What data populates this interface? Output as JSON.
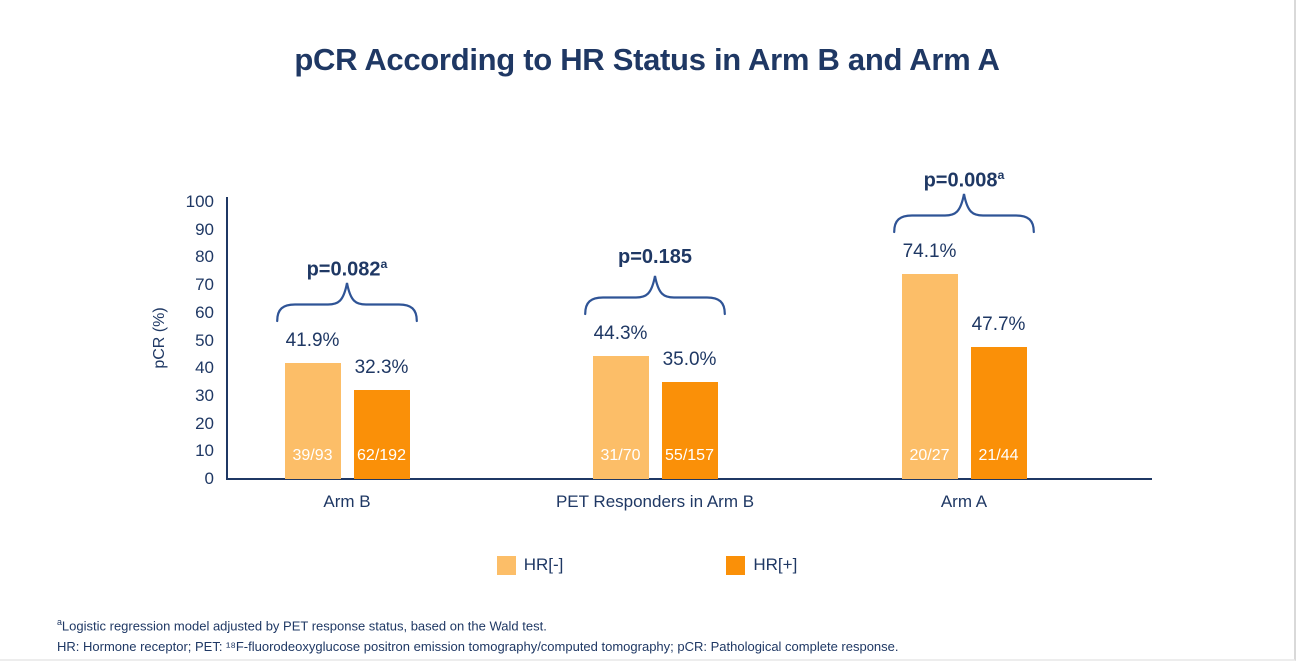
{
  "chart_data": {
    "type": "bar",
    "title": "pCR According to HR Status in Arm B and Arm A",
    "xlabel": "",
    "ylabel": "pCR (%)",
    "ylim": [
      0,
      100
    ],
    "yticks": [
      0,
      10,
      20,
      30,
      40,
      50,
      60,
      70,
      80,
      90,
      100
    ],
    "grid": false,
    "legend_position": "bottom",
    "categories": [
      "Arm B",
      "PET Responders in Arm B",
      "Arm A"
    ],
    "series": [
      {
        "id": "hr-negative",
        "name": "HR[-]",
        "color": "#FCBE68",
        "values": [
          41.9,
          44.3,
          74.1
        ],
        "value_labels": [
          "41.9%",
          "44.3%",
          "74.1%"
        ],
        "bar_counts": [
          "39/93",
          "31/70",
          "20/27"
        ]
      },
      {
        "id": "hr-positive",
        "name": "HR[+]",
        "color": "#FA9008",
        "values": [
          32.3,
          35.0,
          47.7
        ],
        "value_labels": [
          "32.3%",
          "35.0%",
          "47.7%"
        ],
        "bar_counts": [
          "62/192",
          "55/157",
          "21/44"
        ]
      }
    ],
    "p_annotations": [
      {
        "text": "p=0.082",
        "sup": "a"
      },
      {
        "text": "p=0.185",
        "sup": ""
      },
      {
        "text": "p=0.008",
        "sup": "a"
      }
    ]
  },
  "footnotes": [
    {
      "sup": "a",
      "text": "Logistic regression model adjusted by PET response status, based on the Wald test."
    },
    {
      "sup": "",
      "text": "HR: Hormone receptor; PET: ¹⁸F-fluorodeoxyglucose positron emission tomography/computed tomography; pCR: Pathological complete response."
    }
  ],
  "colors": {
    "text_navy": "#1F3864",
    "brace_blue": "#2F5496",
    "axis": "#1F3864",
    "hr_negative": "#FCBE68",
    "hr_positive": "#FA9008",
    "count_text": "#FFFFFF",
    "background": "#FFFFFF"
  }
}
